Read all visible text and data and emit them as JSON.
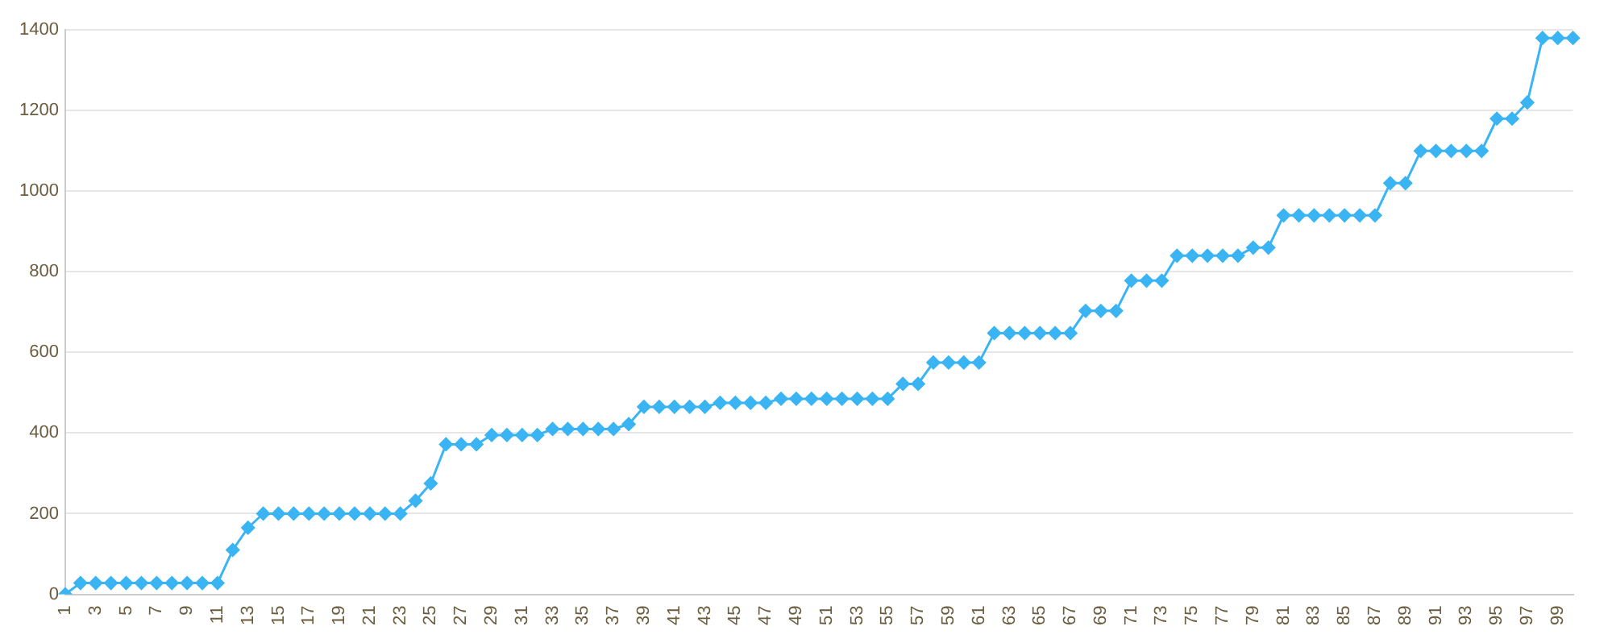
{
  "chart_data": {
    "type": "line",
    "categories": [
      "1",
      null,
      "3",
      null,
      "5",
      null,
      "7",
      null,
      "9",
      null,
      "11",
      null,
      "13",
      null,
      "15",
      null,
      "17",
      null,
      "19",
      null,
      "21",
      null,
      "23",
      null,
      "25",
      null,
      "27",
      null,
      "29",
      null,
      "31",
      null,
      "33",
      null,
      "35",
      null,
      "37",
      null,
      "39",
      null,
      "41",
      null,
      "43",
      null,
      "45",
      null,
      "47",
      null,
      "49",
      null,
      "51",
      null,
      "53",
      null,
      "55",
      null,
      "57",
      null,
      "59",
      null,
      "61",
      null,
      "63",
      null,
      "65",
      null,
      "67",
      null,
      "69",
      null,
      "71",
      null,
      "73",
      null,
      "75",
      null,
      "77",
      null,
      "79",
      null,
      "81",
      null,
      "83",
      null,
      "85",
      null,
      "87",
      null,
      "89",
      null,
      "91",
      null,
      "93",
      null,
      "95",
      null,
      "97",
      null,
      "99",
      null
    ],
    "series": [
      {
        "color": "#3ab4f2",
        "values": [
          0,
          28,
          28,
          28,
          28,
          28,
          28,
          28,
          28,
          28,
          28,
          110,
          165,
          200,
          200,
          200,
          200,
          200,
          200,
          200,
          200,
          200,
          200,
          232,
          275,
          372,
          372,
          372,
          395,
          395,
          395,
          395,
          410,
          410,
          410,
          410,
          410,
          422,
          465,
          465,
          465,
          465,
          465,
          475,
          475,
          475,
          475,
          485,
          485,
          485,
          485,
          485,
          485,
          485,
          485,
          522,
          522,
          575,
          575,
          575,
          575,
          648,
          648,
          648,
          648,
          648,
          648,
          703,
          703,
          703,
          778,
          778,
          778,
          840,
          840,
          840,
          840,
          840,
          860,
          860,
          940,
          940,
          940,
          940,
          940,
          940,
          940,
          1020,
          1020,
          1100,
          1100,
          1100,
          1100,
          1100,
          1180,
          1180,
          1220,
          1380,
          1380,
          1380
        ]
      }
    ],
    "ylim": [
      0,
      1400
    ],
    "yticks": [
      0,
      200,
      400,
      600,
      800,
      1000,
      1200,
      1400
    ],
    "grid": "y",
    "legend": false,
    "marker": "diamond",
    "line_style": "solid"
  }
}
